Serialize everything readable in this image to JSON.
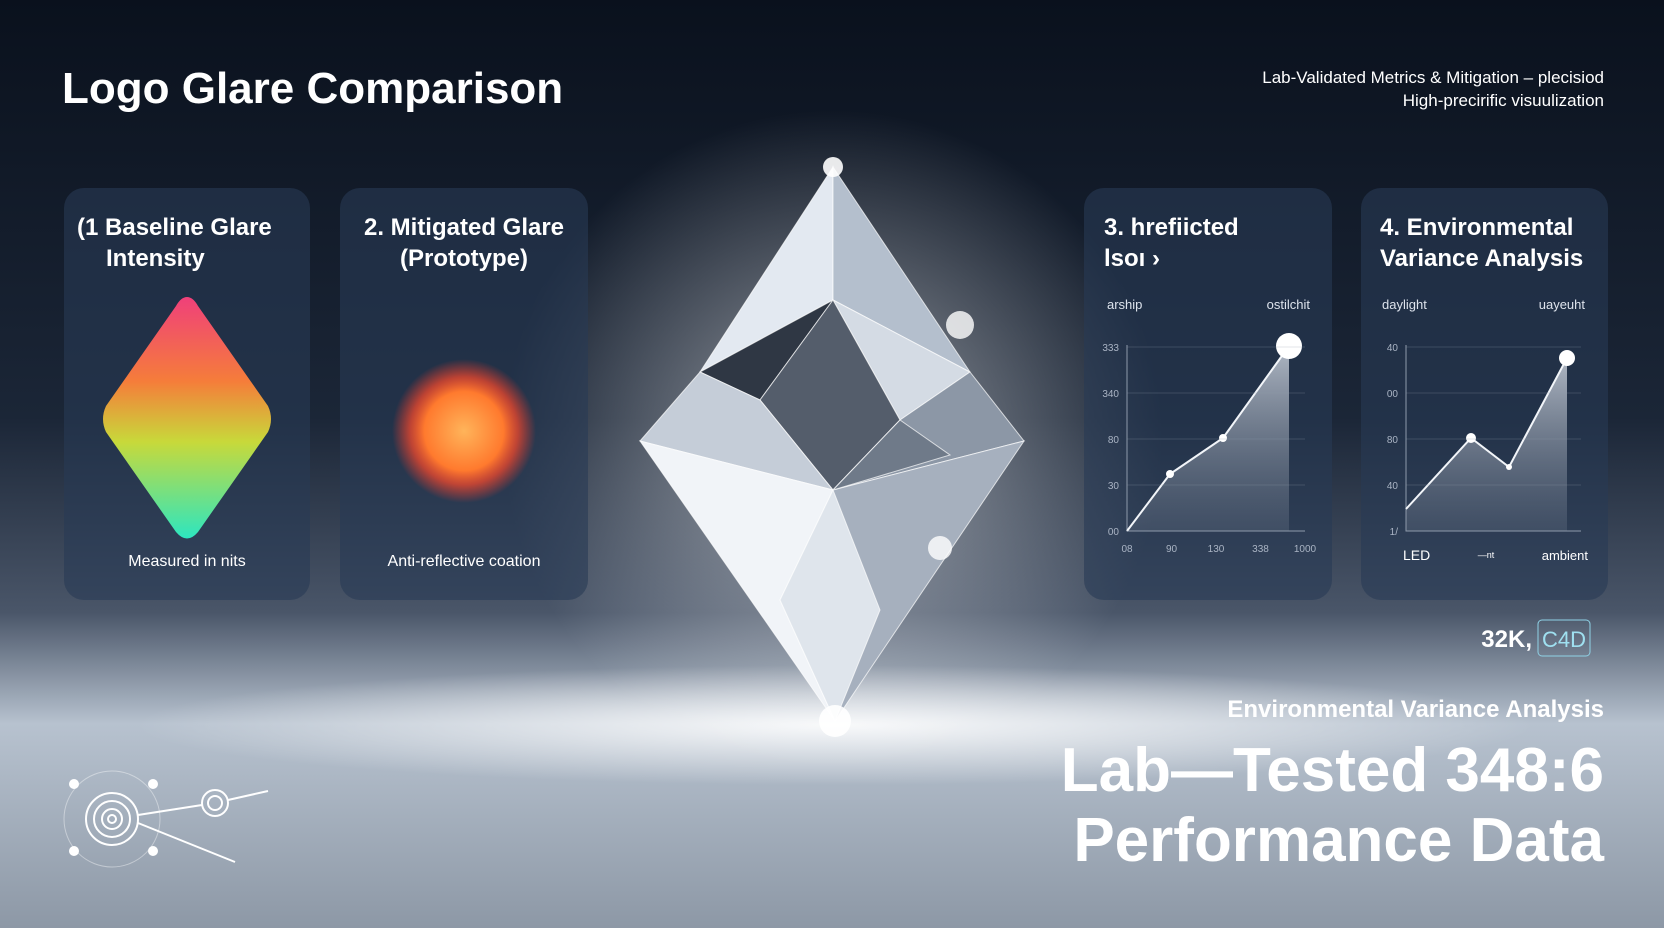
{
  "header": {
    "title": "Logo Glare Comparison",
    "subtitle": [
      "Lab-Validated Metrics & Mitigation – plecisiod",
      "High-precirific visuulization"
    ]
  },
  "cards": [
    {
      "title": [
        "(1 Baseline Glare",
        "Intensity"
      ],
      "caption": "Measured in nits"
    },
    {
      "title": [
        "2. Mitigated Glare",
        "(Prototype)"
      ],
      "caption": "Anti-reflective coation"
    },
    {
      "title": [
        "3. hrefiicted",
        "lsoı ›"
      ],
      "legend": [
        "arship",
        "ostilchit"
      ],
      "y_labels": [
        "333",
        "340",
        "80",
        "30",
        "00"
      ],
      "x_labels": [
        "08",
        "90",
        "130",
        "338",
        "1000"
      ]
    },
    {
      "title": [
        "4. Environmental",
        "Variance Analysis"
      ],
      "legend": [
        "daylight",
        "uayeuht"
      ],
      "y_labels": [
        "40",
        "00",
        "80",
        "40",
        "1/"
      ],
      "x_labels": [
        "LED",
        "—nt",
        "ambient"
      ]
    }
  ],
  "footer": {
    "tag": "32K,",
    "tag_box": "C4D",
    "subtitle": "Environmental Variance Analysis",
    "headline": [
      "Lab—Tested 348:6",
      "Performance Data"
    ]
  }
}
